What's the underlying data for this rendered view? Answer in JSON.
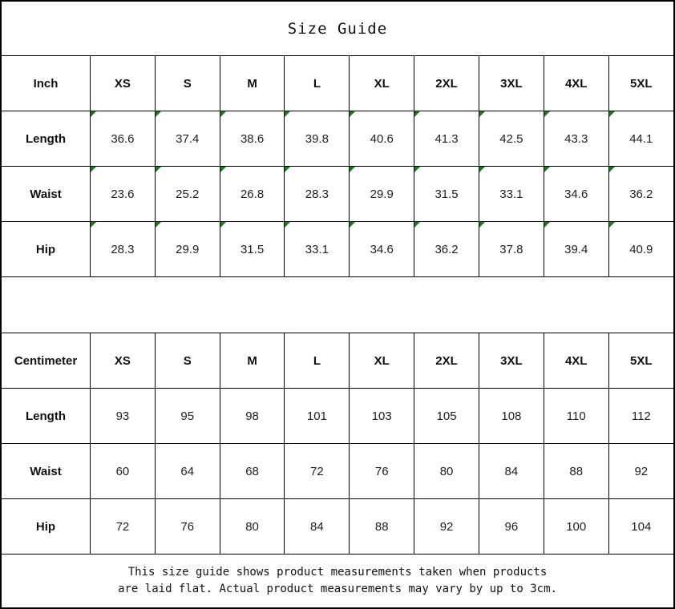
{
  "title": "Size Guide",
  "colors": {
    "border": "#000000",
    "marker_green": "#1a7a1a",
    "text": "#1f1f1f"
  },
  "inch_table": {
    "unit_label": "Inch",
    "sizes": [
      "XS",
      "S",
      "M",
      "L",
      "XL",
      "2XL",
      "3XL",
      "4XL",
      "5XL"
    ],
    "rows": [
      {
        "label": "Length",
        "values": [
          "36.6",
          "37.4",
          "38.6",
          "39.8",
          "40.6",
          "41.3",
          "42.5",
          "43.3",
          "44.1"
        ]
      },
      {
        "label": "Waist",
        "values": [
          "23.6",
          "25.2",
          "26.8",
          "28.3",
          "29.9",
          "31.5",
          "33.1",
          "34.6",
          "36.2"
        ]
      },
      {
        "label": "Hip",
        "values": [
          "28.3",
          "29.9",
          "31.5",
          "33.1",
          "34.6",
          "36.2",
          "37.8",
          "39.4",
          "40.9"
        ]
      }
    ],
    "has_markers": true,
    "marker_icon": "green-corner-triangle"
  },
  "cm_table": {
    "unit_label": "Centimeter",
    "sizes": [
      "XS",
      "S",
      "M",
      "L",
      "XL",
      "2XL",
      "3XL",
      "4XL",
      "5XL"
    ],
    "rows": [
      {
        "label": "Length",
        "values": [
          "93",
          "95",
          "98",
          "101",
          "103",
          "105",
          "108",
          "110",
          "112"
        ]
      },
      {
        "label": "Waist",
        "values": [
          "60",
          "64",
          "68",
          "72",
          "76",
          "80",
          "84",
          "88",
          "92"
        ]
      },
      {
        "label": "Hip",
        "values": [
          "72",
          "76",
          "80",
          "84",
          "88",
          "92",
          "96",
          "100",
          "104"
        ]
      }
    ],
    "has_markers": false
  },
  "footer": {
    "line1": "This size guide shows product measurements taken when products",
    "line2": "are laid flat. Actual product measurements may vary by up to 3cm."
  }
}
